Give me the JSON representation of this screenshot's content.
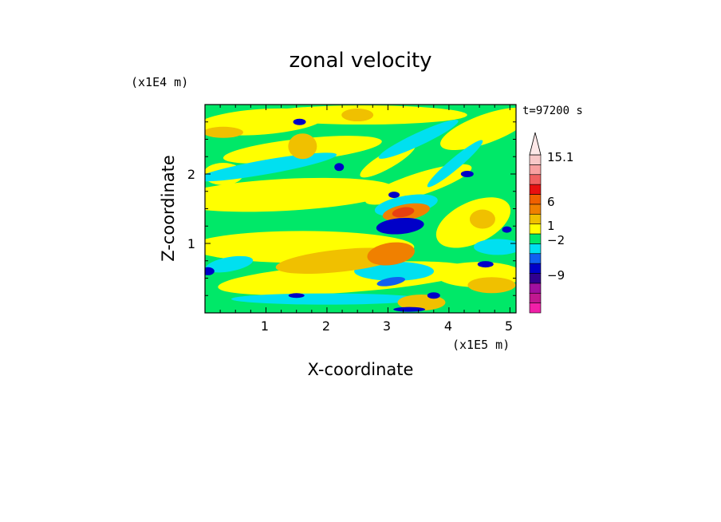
{
  "chart_data": {
    "type": "heatmap",
    "title": "zonal velocity",
    "time_label": "t=97200 s",
    "xlabel": "X-coordinate",
    "ylabel": "Z-coordinate",
    "x_unit_label": "(x1E5 m)",
    "y_unit_label": "(x1E4 m)",
    "xlim": [
      0,
      5.1
    ],
    "ylim": [
      0,
      3.0
    ],
    "x_ticks": [
      "1",
      "2",
      "3",
      "4",
      "5"
    ],
    "y_ticks": [
      "1",
      "2"
    ],
    "colorbar": {
      "colors": [
        "#f020a8",
        "#c01890",
        "#a010a0",
        "#300090",
        "#0000c8",
        "#1060f0",
        "#00e0f0",
        "#00e868",
        "#ffff00",
        "#f0c000",
        "#f08000",
        "#f06000",
        "#e81010",
        "#f06060",
        "#f8a0a0",
        "#f8c8c8"
      ],
      "labels": [
        "15.1",
        "6",
        "1",
        "−2",
        "−9"
      ],
      "extends_max": true
    },
    "field_palette": {
      "strong_neg": "#0000c8",
      "neg": "#1060f0",
      "weak_neg": "#00e0f0",
      "near_zero": "#00e868",
      "weak_pos": "#ffff00",
      "pos": "#f0c000",
      "strong_pos": "#f08000",
      "max_pos": "#e84010"
    }
  }
}
